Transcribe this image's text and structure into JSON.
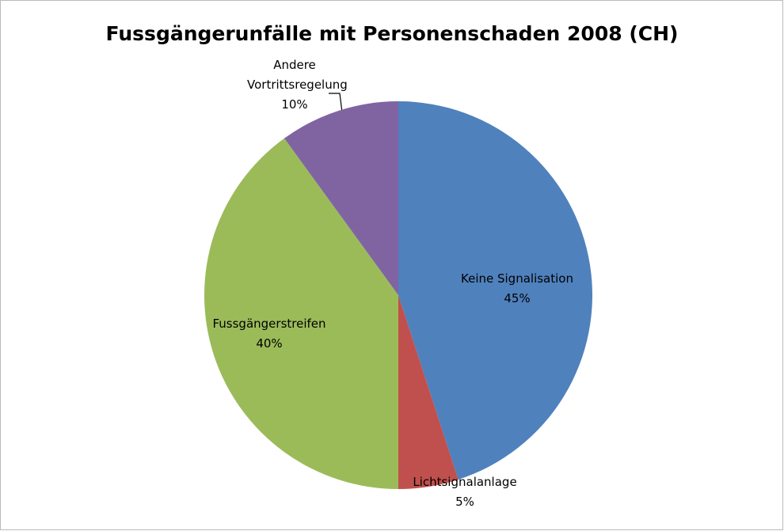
{
  "chart_data": {
    "type": "pie",
    "title": "Fussgängerunfälle mit Personenschaden 2008 (CH)",
    "categories": [
      "Keine Signalisation",
      "Lichtsignalanlage",
      "Fussgängerstreifen",
      "Andere Vortrittsregelung"
    ],
    "values": [
      45,
      5,
      40,
      10
    ],
    "value_labels": [
      "45%",
      "5%",
      "40%",
      "10%"
    ],
    "colors": [
      "#4f81bd",
      "#c0504d",
      "#9bbb59",
      "#8064a2"
    ]
  }
}
